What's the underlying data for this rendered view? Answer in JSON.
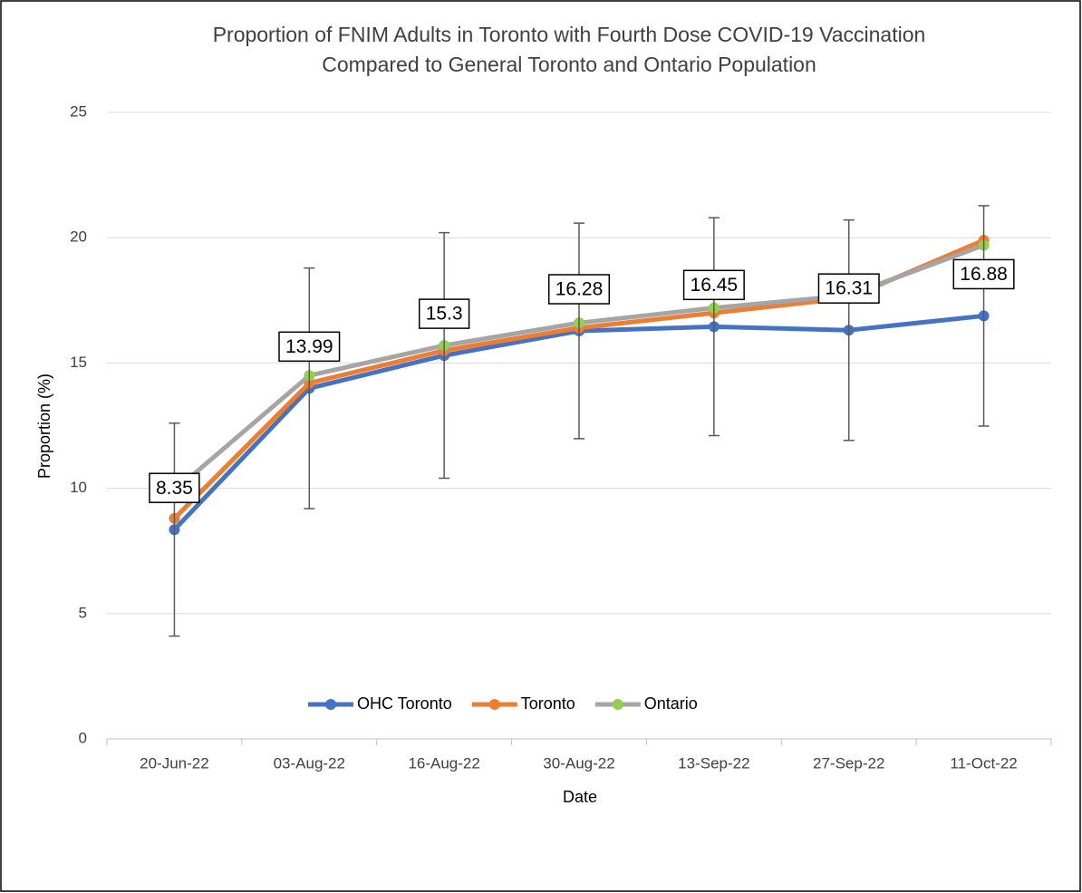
{
  "chart_data": {
    "type": "line",
    "title": [
      "Proportion of FNIM Adults in Toronto with Fourth Dose COVID-19 Vaccination",
      "Compared to General Toronto and Ontario Population"
    ],
    "x_label": "Date",
    "y_label": "Proportion (%)",
    "categories": [
      "20-Jun-22",
      "03-Aug-22",
      "16-Aug-22",
      "30-Aug-22",
      "13-Sep-22",
      "27-Sep-22",
      "11-Oct-22"
    ],
    "series": [
      {
        "name": "OHC Toronto",
        "color": "#4472c4",
        "marker_color": "#4472c4",
        "values": [
          8.35,
          13.99,
          15.3,
          16.28,
          16.45,
          16.31,
          16.88
        ],
        "errors": [
          4.25,
          4.8,
          4.9,
          4.3,
          4.35,
          4.4,
          4.4
        ],
        "data_labels": true
      },
      {
        "name": "Toronto",
        "color": "#ed7d31",
        "marker_color": "#ed7d31",
        "values": [
          8.8,
          14.2,
          15.5,
          16.4,
          17.0,
          17.6,
          19.9
        ]
      },
      {
        "name": "Ontario",
        "color": "#a5a5a5",
        "marker_color": "#92d050",
        "values": [
          9.9,
          14.5,
          15.7,
          16.6,
          17.2,
          17.7,
          19.7
        ]
      }
    ],
    "ylim": [
      0,
      25
    ],
    "yticks": [
      0,
      5,
      10,
      15,
      20,
      25
    ],
    "grid": true,
    "legend": "bottom"
  }
}
